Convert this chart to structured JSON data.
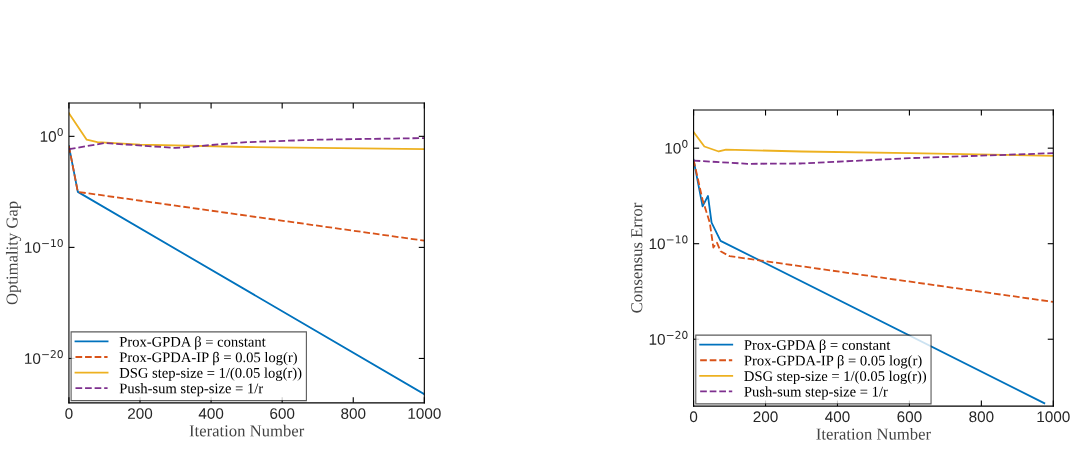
{
  "chart_data": [
    {
      "type": "line",
      "xlabel": "Iteration Number",
      "ylabel": "Optimality Gap",
      "log": "y",
      "grid": false,
      "legend": "bottom left",
      "marker": "none",
      "xlim": [
        0,
        1000
      ],
      "xticks": [
        0,
        200,
        400,
        600,
        800,
        1000
      ],
      "ylim": [
        1e-24,
        1000
      ],
      "yticks": [
        {
          "value": 1,
          "label": "10$^{0}$"
        },
        {
          "value": 1e-10,
          "label": "10$^{−10}$"
        },
        {
          "value": 1e-20,
          "label": "10$^{−20}$"
        }
      ],
      "series": [
        {
          "name": "Prox-GPDA β = constant",
          "color": "#0072bd",
          "line_style": "solid",
          "x": [
            0,
            25,
            1000
          ],
          "values": [
            0.13,
            1e-05,
            6e-24
          ]
        },
        {
          "name": "Prox-GPDA-IP β = 0.05 log(r)",
          "color": "#d95319",
          "line_style": "dashed",
          "x": [
            0,
            25,
            1000
          ],
          "values": [
            0.13,
            1e-05,
            4e-10
          ]
        },
        {
          "name": "DSG step-size = 1/(0.05 log(r))",
          "color": "#edb120",
          "line_style": "solid",
          "x": [
            0,
            50,
            80,
            200,
            500,
            1000
          ],
          "values": [
            120,
            0.5,
            0.3,
            0.18,
            0.11,
            0.07
          ]
        },
        {
          "name": "Push-sum step-size = 1/r",
          "color": "#7e2f8e",
          "line_style": "dashed",
          "x": [
            0,
            100,
            300,
            500,
            700,
            1000
          ],
          "values": [
            0.07,
            0.25,
            0.09,
            0.3,
            0.5,
            0.7
          ]
        }
      ]
    },
    {
      "type": "line",
      "xlabel": "Iteration Number",
      "ylabel": "Consensus Error",
      "log": "y",
      "grid": false,
      "legend": "bottom left",
      "marker": "none",
      "xlim": [
        0,
        1000
      ],
      "xticks": [
        0,
        200,
        400,
        600,
        800,
        1000
      ],
      "ylim": [
        1e-27,
        10000
      ],
      "yticks": [
        {
          "value": 1,
          "label": "10$^{0}$"
        },
        {
          "value": 1e-10,
          "label": "10$^{−10}$"
        },
        {
          "value": 1e-20,
          "label": "10$^{−20}$"
        }
      ],
      "series": [
        {
          "name": "Prox-GPDA β = constant",
          "color": "#0072bd",
          "line_style": "solid",
          "x": [
            0,
            25,
            40,
            50,
            75,
            975
          ],
          "values": [
            0.06,
            8e-07,
            1e-05,
            1.6e-08,
            2e-10,
            2e-27
          ]
        },
        {
          "name": "Prox-GPDA-IP β = 0.05 log(r)",
          "color": "#d95319",
          "line_style": "dashed",
          "x": [
            0,
            25,
            45,
            55,
            65,
            75,
            100,
            1000
          ],
          "values": [
            0.06,
            4e-06,
            1.6e-08,
            4e-11,
            1.3e-10,
            1.6e-11,
            5e-12,
            8e-17
          ]
        },
        {
          "name": "DSG step-size = 1/(0.05 log(r))",
          "color": "#edb120",
          "line_style": "solid",
          "x": [
            0,
            30,
            70,
            90,
            300,
            600,
            1000
          ],
          "values": [
            50,
            1.5,
            0.45,
            0.7,
            0.45,
            0.3,
            0.16
          ]
        },
        {
          "name": "Push-sum step-size = 1/r",
          "color": "#7e2f8e",
          "line_style": "dashed",
          "x": [
            0,
            150,
            300,
            600,
            1000
          ],
          "values": [
            0.05,
            0.023,
            0.025,
            0.09,
            0.3
          ]
        }
      ]
    }
  ]
}
